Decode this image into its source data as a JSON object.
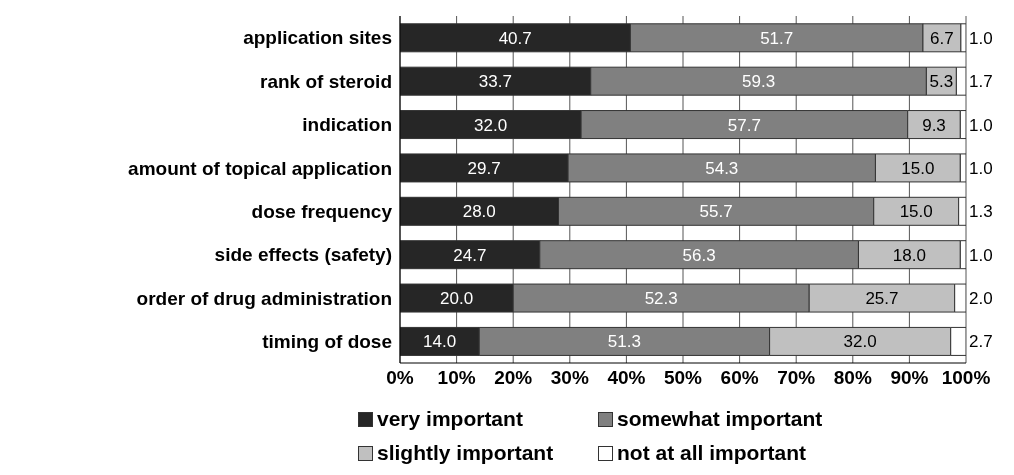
{
  "chart_data": {
    "type": "bar",
    "orientation": "horizontal",
    "stacked": true,
    "categories": [
      "application sites",
      "rank of steroid",
      "indication",
      "amount of topical application",
      "dose frequency",
      "side effects (safety)",
      "order of drug administration",
      "timing of dose"
    ],
    "series": [
      {
        "name": "very important",
        "color": "#262626",
        "values": [
          40.7,
          33.7,
          32.0,
          29.7,
          28.0,
          24.7,
          20.0,
          14.0
        ],
        "value_labels": [
          "40.7",
          "33.7",
          "32.0",
          "29.7",
          "28.0",
          "24.7",
          "20.0",
          "14.0"
        ]
      },
      {
        "name": "somewhat important",
        "color": "#808080",
        "values": [
          51.7,
          59.3,
          57.7,
          54.3,
          55.7,
          56.3,
          52.3,
          51.3
        ],
        "value_labels": [
          "51.7",
          "59.3",
          "57.7",
          "54.3",
          "55.7",
          "56.3",
          "52.3",
          "51.3"
        ]
      },
      {
        "name": "slightly important",
        "color": "#c0c0c0",
        "values": [
          6.7,
          5.3,
          9.3,
          15.0,
          15.0,
          18.0,
          25.7,
          32.0
        ],
        "value_labels": [
          "6.7",
          "5.3",
          "9.3",
          "15.0",
          "15.0",
          "18.0",
          "25.7",
          "32.0"
        ]
      },
      {
        "name": "not at all important",
        "color": "#ffffff",
        "values": [
          1.0,
          1.7,
          1.0,
          1.0,
          1.3,
          1.0,
          2.0,
          2.7
        ],
        "value_labels": [
          "1.0",
          "1.7",
          "1.0",
          "1.0",
          "1.3",
          "1.0",
          "2.0",
          "2.7"
        ]
      }
    ],
    "xlim": [
      0,
      100
    ],
    "xticks": [
      {
        "value": 0,
        "label": "0%"
      },
      {
        "value": 10,
        "label": "10%"
      },
      {
        "value": 20,
        "label": "20%"
      },
      {
        "value": 30,
        "label": "30%"
      },
      {
        "value": 40,
        "label": "40%"
      },
      {
        "value": 50,
        "label": "50%"
      },
      {
        "value": 60,
        "label": "60%"
      },
      {
        "value": 70,
        "label": "70%"
      },
      {
        "value": 80,
        "label": "80%"
      },
      {
        "value": 90,
        "label": "90%"
      },
      {
        "value": 100,
        "label": "100%"
      }
    ],
    "grid": "x",
    "legend": "bottom"
  }
}
